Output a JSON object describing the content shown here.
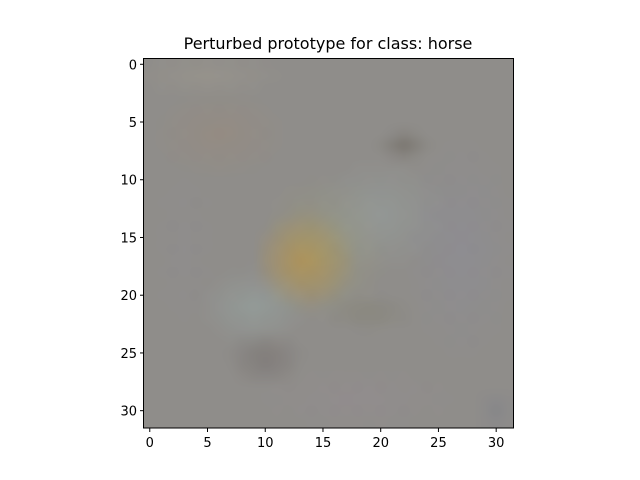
{
  "figure": {
    "title": "Perturbed prototype for class: horse"
  },
  "image": {
    "resolution": [
      32,
      32
    ],
    "x_ticks": [
      "0",
      "5",
      "10",
      "15",
      "20",
      "25",
      "30"
    ],
    "y_ticks": [
      "0",
      "5",
      "10",
      "15",
      "20",
      "25",
      "30"
    ],
    "base_color": "#8f8d8a",
    "blobs": [
      {
        "cx": 13.5,
        "cy": 17,
        "rx": 4.5,
        "ry": 4.5,
        "color": "#b98f4a",
        "alpha": 0.85
      },
      {
        "cx": 15,
        "cy": 16,
        "rx": 6,
        "ry": 6.5,
        "color": "#9ea36e",
        "alpha": 0.35
      },
      {
        "cx": 22,
        "cy": 7,
        "rx": 2.5,
        "ry": 1.5,
        "color": "#6b655c",
        "alpha": 0.5
      },
      {
        "cx": 10,
        "cy": 25.5,
        "rx": 3.5,
        "ry": 2.5,
        "color": "#6f6866",
        "alpha": 0.45
      },
      {
        "cx": 19,
        "cy": 21.5,
        "rx": 4,
        "ry": 1.8,
        "color": "#7e7c68",
        "alpha": 0.35
      },
      {
        "cx": 9,
        "cy": 21,
        "rx": 5,
        "ry": 3.5,
        "color": "#98aaa8",
        "alpha": 0.45
      },
      {
        "cx": 20,
        "cy": 13,
        "rx": 6,
        "ry": 5,
        "color": "#9aaaa9",
        "alpha": 0.35
      },
      {
        "cx": 27,
        "cy": 16,
        "rx": 5,
        "ry": 10,
        "color": "#8c8c9a",
        "alpha": 0.45
      },
      {
        "cx": 6,
        "cy": 6,
        "rx": 6,
        "ry": 4,
        "color": "#9c8a78",
        "alpha": 0.4
      },
      {
        "cx": 5,
        "cy": 1,
        "rx": 7,
        "ry": 2,
        "color": "#a09a8e",
        "alpha": 0.4
      },
      {
        "cx": 18,
        "cy": 29,
        "rx": 9,
        "ry": 3,
        "color": "#948c92",
        "alpha": 0.4
      },
      {
        "cx": 3,
        "cy": 16,
        "rx": 3,
        "ry": 8,
        "color": "#8e8c90",
        "alpha": 0.35
      },
      {
        "cx": 30,
        "cy": 30,
        "rx": 2,
        "ry": 2,
        "color": "#7c7f88",
        "alpha": 0.4
      }
    ]
  }
}
